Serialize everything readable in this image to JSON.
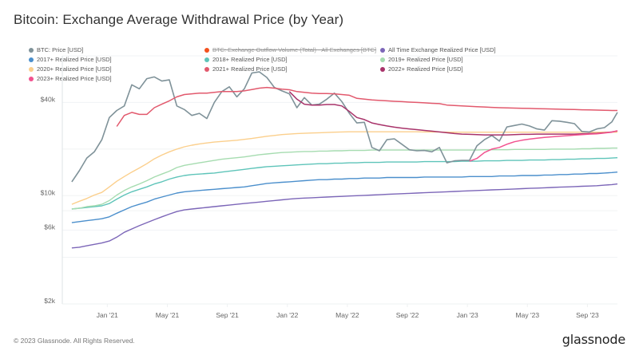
{
  "page": {
    "title": "Bitcoin: Exchange Average Withdrawal Price (by Year)",
    "footer": "© 2023 Glassnode. All Rights Reserved.",
    "brand": "glassnode"
  },
  "chart_data": {
    "type": "line",
    "title": "Bitcoin: Exchange Average Withdrawal Price (by Year)",
    "xlabel": "",
    "ylabel": "",
    "y_scale": "log",
    "ylim": [
      2000,
      80000
    ],
    "y_ticks": [
      {
        "value": 2000,
        "label": "$2k"
      },
      {
        "value": 6000,
        "label": "$6k"
      },
      {
        "value": 10000,
        "label": "$10k"
      },
      {
        "value": 40000,
        "label": "$40k"
      }
    ],
    "y_gridlines": [
      2000,
      4000,
      6000,
      8000,
      10000,
      20000,
      40000,
      80000
    ],
    "x_range": [
      "2020-10",
      "2023-11"
    ],
    "x_ticks": [
      {
        "value": "2021-01",
        "label": "Jan '21"
      },
      {
        "value": "2021-05",
        "label": "May '21"
      },
      {
        "value": "2021-09",
        "label": "Sep '21"
      },
      {
        "value": "2022-01",
        "label": "Jan '22"
      },
      {
        "value": "2022-05",
        "label": "May '22"
      },
      {
        "value": "2022-09",
        "label": "Sep '22"
      },
      {
        "value": "2023-01",
        "label": "Jan '23"
      },
      {
        "value": "2023-05",
        "label": "May '23"
      },
      {
        "value": "2023-09",
        "label": "Sep '23"
      }
    ],
    "grid": true,
    "legend_position": "top",
    "x": [
      "2020-10-20",
      "2020-11-05",
      "2020-11-20",
      "2020-12-05",
      "2020-12-20",
      "2021-01-05",
      "2021-01-20",
      "2021-02-05",
      "2021-02-20",
      "2021-03-05",
      "2021-03-20",
      "2021-04-05",
      "2021-04-20",
      "2021-05-05",
      "2021-05-20",
      "2021-06-05",
      "2021-06-20",
      "2021-07-05",
      "2021-07-20",
      "2021-08-05",
      "2021-08-20",
      "2021-09-05",
      "2021-09-20",
      "2021-10-05",
      "2021-10-20",
      "2021-11-05",
      "2021-11-20",
      "2021-12-05",
      "2021-12-20",
      "2022-01-05",
      "2022-01-20",
      "2022-02-05",
      "2022-02-20",
      "2022-03-05",
      "2022-03-20",
      "2022-04-05",
      "2022-04-20",
      "2022-05-05",
      "2022-05-20",
      "2022-06-05",
      "2022-06-20",
      "2022-07-05",
      "2022-07-20",
      "2022-08-05",
      "2022-08-20",
      "2022-09-05",
      "2022-09-20",
      "2022-10-05",
      "2022-10-20",
      "2022-11-05",
      "2022-11-20",
      "2022-12-05",
      "2022-12-20",
      "2023-01-05",
      "2023-01-20",
      "2023-02-05",
      "2023-02-20",
      "2023-03-05",
      "2023-03-20",
      "2023-04-05",
      "2023-04-20",
      "2023-05-05",
      "2023-05-20",
      "2023-06-05",
      "2023-06-20",
      "2023-07-05",
      "2023-07-20",
      "2023-08-05",
      "2023-08-20",
      "2023-09-05",
      "2023-09-20",
      "2023-10-05",
      "2023-10-20",
      "2023-11-01"
    ],
    "series": [
      {
        "name": "BTC: Price [USD]",
        "color": "#7f9299",
        "width": 1.6,
        "values": [
          12300,
          14500,
          17500,
          19200,
          23000,
          32000,
          35500,
          38000,
          52000,
          49000,
          57000,
          58500,
          55000,
          56000,
          38000,
          36000,
          33000,
          34000,
          31500,
          40000,
          47000,
          50500,
          43500,
          49000,
          62000,
          63000,
          58000,
          50000,
          47500,
          45500,
          37000,
          43000,
          38500,
          39000,
          42000,
          46000,
          40500,
          34000,
          29500,
          29800,
          20500,
          19500,
          23000,
          23300,
          21500,
          19800,
          19500,
          19600,
          19200,
          20500,
          16300,
          16800,
          16900,
          16900,
          21000,
          23000,
          24500,
          22500,
          27800,
          28400,
          29000,
          28200,
          27000,
          26500,
          30500,
          30300,
          29800,
          29200,
          26000,
          25800,
          27000,
          27500,
          30000,
          34500
        ]
      },
      {
        "name": "2021+ Realized Price [USD]",
        "color": "#e2596d",
        "width": 1.5,
        "values": [
          null,
          null,
          null,
          null,
          null,
          null,
          28000,
          33000,
          34500,
          33500,
          33500,
          37000,
          39000,
          41000,
          43500,
          45000,
          45500,
          46000,
          46000,
          46500,
          47000,
          47000,
          47000,
          47500,
          48500,
          49500,
          50000,
          49500,
          48800,
          48300,
          47000,
          46500,
          46000,
          45700,
          45700,
          45500,
          45000,
          44500,
          42500,
          42000,
          41500,
          41200,
          41000,
          40700,
          40500,
          40200,
          40000,
          39800,
          39500,
          39300,
          38500,
          38200,
          38000,
          37800,
          37600,
          37400,
          37200,
          37000,
          36900,
          36800,
          36700,
          36600,
          36500,
          36400,
          36300,
          36200,
          36100,
          36000,
          35900,
          35800,
          35700,
          35600,
          35500,
          35500
        ]
      },
      {
        "name": "2022+ Realized Price [USD]",
        "color": "#a8336a",
        "width": 1.5,
        "values": [
          null,
          null,
          null,
          null,
          null,
          null,
          null,
          null,
          null,
          null,
          null,
          null,
          null,
          null,
          null,
          null,
          null,
          null,
          null,
          null,
          null,
          null,
          null,
          null,
          null,
          null,
          null,
          null,
          null,
          47000,
          42000,
          39000,
          38500,
          38500,
          38800,
          38800,
          38000,
          35000,
          32000,
          31000,
          29500,
          28800,
          28200,
          27700,
          27300,
          27000,
          26700,
          26400,
          26100,
          25800,
          25500,
          25200,
          25000,
          24900,
          24800,
          24700,
          24700,
          24700,
          24700,
          24800,
          24900,
          24900,
          25000,
          25000,
          25000,
          25000,
          25000,
          25000,
          25100,
          25200,
          25300,
          25500,
          25800,
          26200
        ]
      },
      {
        "name": "2023+ Realized Price [USD]",
        "color": "#f2528f",
        "width": 1.5,
        "values": [
          null,
          null,
          null,
          null,
          null,
          null,
          null,
          null,
          null,
          null,
          null,
          null,
          null,
          null,
          null,
          null,
          null,
          null,
          null,
          null,
          null,
          null,
          null,
          null,
          null,
          null,
          null,
          null,
          null,
          null,
          null,
          null,
          null,
          null,
          null,
          null,
          null,
          null,
          null,
          null,
          null,
          null,
          null,
          null,
          null,
          null,
          null,
          null,
          null,
          null,
          null,
          null,
          null,
          16700,
          17400,
          19000,
          20000,
          20500,
          21500,
          22300,
          22800,
          23200,
          23500,
          23800,
          24000,
          24200,
          24400,
          24600,
          24800,
          25000,
          25100,
          25400,
          25700,
          26300
        ]
      },
      {
        "name": "2020+ Realized Price [USD]",
        "color": "#fbcf8c",
        "width": 1.4,
        "values": [
          8800,
          9200,
          9600,
          10100,
          10500,
          11400,
          12400,
          13300,
          14200,
          15100,
          16100,
          17300,
          18300,
          19200,
          20000,
          20700,
          21200,
          21600,
          21900,
          22200,
          22400,
          22600,
          22800,
          23100,
          23400,
          23800,
          24200,
          24500,
          24800,
          25000,
          25200,
          25300,
          25400,
          25500,
          25600,
          25700,
          25800,
          25850,
          25850,
          25850,
          25850,
          25850,
          25850,
          25850,
          25850,
          25850,
          25850,
          25800,
          25800,
          25800,
          25700,
          25700,
          25700,
          25700,
          25700,
          25700,
          25700,
          25700,
          25700,
          25700,
          25700,
          25700,
          25700,
          25700,
          25700,
          25700,
          25700,
          25700,
          25700,
          25700,
          25700,
          25700,
          25700,
          25700
        ]
      },
      {
        "name": "2019+ Realized Price [USD]",
        "color": "#a6dcb0",
        "width": 1.4,
        "values": [
          8200,
          8300,
          8500,
          8600,
          8800,
          9300,
          10100,
          10800,
          11400,
          11900,
          12500,
          13200,
          13800,
          14400,
          15200,
          15700,
          16000,
          16300,
          16600,
          16900,
          17200,
          17400,
          17600,
          17800,
          18100,
          18400,
          18600,
          18800,
          19000,
          19100,
          19200,
          19300,
          19300,
          19400,
          19400,
          19500,
          19500,
          19600,
          19600,
          19600,
          19700,
          19700,
          19700,
          19700,
          19700,
          19700,
          19700,
          19700,
          19700,
          19700,
          19700,
          19700,
          19700,
          19700,
          19700,
          19800,
          19800,
          19800,
          19800,
          19900,
          19900,
          19900,
          19900,
          19900,
          20000,
          20000,
          20000,
          20000,
          20100,
          20100,
          20200,
          20200,
          20300,
          20300
        ]
      },
      {
        "name": "2018+ Realized Price [USD]",
        "color": "#5ec4b9",
        "width": 1.4,
        "values": [
          8200,
          8300,
          8400,
          8500,
          8600,
          8900,
          9500,
          10100,
          10600,
          11000,
          11400,
          11900,
          12300,
          12800,
          13200,
          13500,
          13700,
          13800,
          13900,
          14000,
          14200,
          14400,
          14600,
          14800,
          15000,
          15200,
          15400,
          15500,
          15600,
          15700,
          15800,
          15900,
          16000,
          16100,
          16100,
          16200,
          16200,
          16300,
          16300,
          16400,
          16400,
          16400,
          16500,
          16500,
          16500,
          16500,
          16500,
          16600,
          16600,
          16600,
          16600,
          16600,
          16700,
          16700,
          16700,
          16800,
          16800,
          16800,
          16900,
          16900,
          16900,
          17000,
          17000,
          17000,
          17100,
          17100,
          17200,
          17200,
          17300,
          17300,
          17400,
          17400,
          17500,
          17600
        ]
      },
      {
        "name": "2017+ Realized Price [USD]",
        "color": "#4b8fcc",
        "width": 1.4,
        "values": [
          6700,
          6800,
          6900,
          7000,
          7100,
          7300,
          7700,
          8100,
          8500,
          8800,
          9100,
          9500,
          9800,
          10100,
          10400,
          10600,
          10700,
          10800,
          10900,
          11000,
          11100,
          11200,
          11300,
          11400,
          11600,
          11800,
          12000,
          12100,
          12200,
          12300,
          12400,
          12500,
          12600,
          12700,
          12700,
          12800,
          12800,
          12900,
          12900,
          13000,
          13000,
          13000,
          13100,
          13100,
          13100,
          13100,
          13100,
          13200,
          13200,
          13200,
          13200,
          13200,
          13200,
          13300,
          13300,
          13300,
          13300,
          13400,
          13400,
          13400,
          13500,
          13500,
          13500,
          13600,
          13600,
          13700,
          13700,
          13800,
          13800,
          13900,
          13900,
          14000,
          14100,
          14200
        ]
      },
      {
        "name": "All Time Exchange Realized Price [USD]",
        "color": "#7c66b8",
        "width": 1.4,
        "values": [
          4600,
          4650,
          4750,
          4850,
          4950,
          5100,
          5400,
          5800,
          6100,
          6400,
          6700,
          7000,
          7300,
          7600,
          7900,
          8100,
          8200,
          8300,
          8400,
          8500,
          8600,
          8700,
          8800,
          8900,
          9000,
          9100,
          9200,
          9300,
          9400,
          9500,
          9600,
          9650,
          9700,
          9750,
          9800,
          9850,
          9900,
          9950,
          10000,
          10050,
          10100,
          10150,
          10200,
          10250,
          10300,
          10350,
          10400,
          10450,
          10500,
          10550,
          10600,
          10650,
          10700,
          10750,
          10800,
          10850,
          10900,
          10950,
          11000,
          11050,
          11100,
          11150,
          11200,
          11250,
          11300,
          11350,
          11400,
          11450,
          11500,
          11550,
          11600,
          11700,
          11800,
          11900
        ]
      }
    ],
    "legend": [
      {
        "label": "BTC: Price [USD]",
        "color": "#7f9299",
        "enabled": true
      },
      {
        "label": "BTC: Exchange Outflow Volume (Total) - All Exchanges [BTC]",
        "color": "#f4511e",
        "enabled": false
      },
      {
        "label": "All Time Exchange Realized Price [USD]",
        "color": "#7c66b8",
        "enabled": true
      },
      {
        "label": "2017+ Realized Price [USD]",
        "color": "#4b8fcc",
        "enabled": true
      },
      {
        "label": "2018+ Realized Price [USD]",
        "color": "#5ec4b9",
        "enabled": true
      },
      {
        "label": "2019+ Realized Price [USD]",
        "color": "#a6dcb0",
        "enabled": true
      },
      {
        "label": "2020+ Realized Price [USD]",
        "color": "#fbcf8c",
        "enabled": true
      },
      {
        "label": "2021+ Realized Price [USD]",
        "color": "#e2596d",
        "enabled": true
      },
      {
        "label": "2022+ Realized Price [USD]",
        "color": "#a8336a",
        "enabled": true
      },
      {
        "label": "2023+ Realized Price [USD]",
        "color": "#f2528f",
        "enabled": true
      }
    ]
  }
}
